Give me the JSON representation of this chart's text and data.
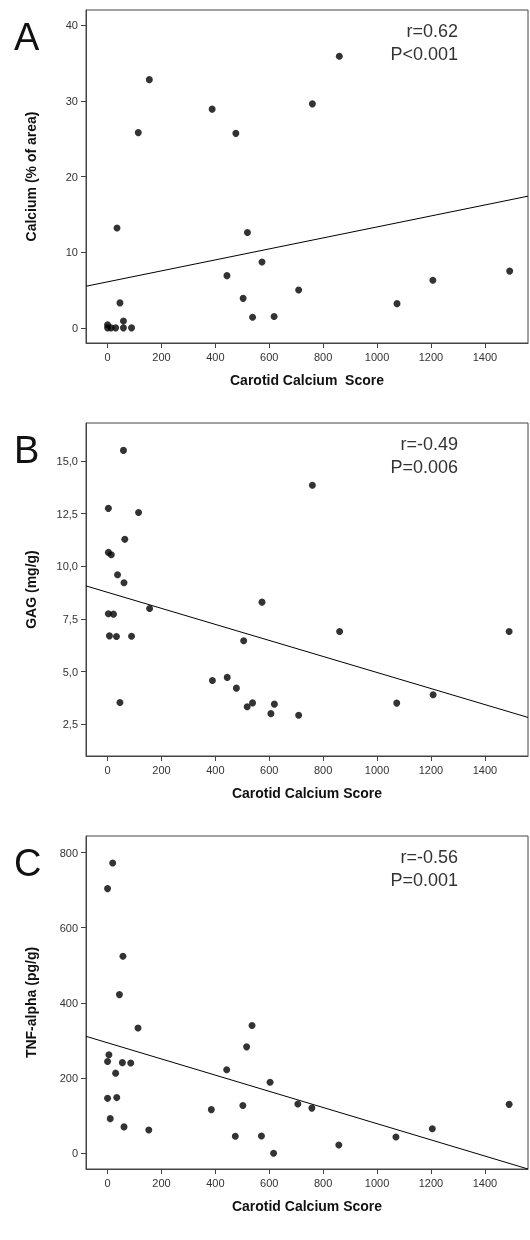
{
  "chart_data": [
    {
      "type": "scatter",
      "title": "A",
      "xlabel": "Carotid Calcium  Score",
      "ylabel": "Calcium (% of area)",
      "annotations": [
        "r=0.62",
        "P<0.001"
      ],
      "xlim": [
        -80,
        1560
      ],
      "ylim": [
        -2,
        42
      ],
      "xticks": [
        0,
        200,
        400,
        600,
        800,
        1000,
        1200,
        1400
      ],
      "yticks": [
        0,
        10,
        20,
        30,
        40
      ],
      "grid": false,
      "series": [
        {
          "marker": "circle",
          "color": "#000000",
          "x": [
            860,
            155,
            760,
            388,
            114,
            476,
            35,
            519,
            573,
            1492,
            443,
            1207,
            709,
            503,
            46,
            1074,
            538,
            618,
            59,
            0,
            0,
            13,
            30,
            59,
            89
          ],
          "values": [
            35.9,
            32.8,
            29.6,
            28.9,
            25.8,
            25.7,
            13.2,
            12.6,
            8.7,
            7.5,
            6.9,
            6.3,
            5.0,
            3.9,
            3.3,
            3.2,
            1.4,
            1.5,
            0.9,
            0.4,
            0,
            0,
            0,
            0,
            0
          ]
        },
        {
          "type": "line",
          "marker": "none",
          "color": "#000000",
          "x": [
            -80,
            1560
          ],
          "values": [
            5.5,
            17.4
          ]
        }
      ]
    },
    {
      "type": "scatter",
      "title": "B",
      "xlabel": "Carotid Calcium Score",
      "ylabel": "GAG (mg/g)",
      "annotations": [
        "r=-0.49",
        "P=0.006"
      ],
      "xlim": [
        -80,
        1560
      ],
      "ylim": [
        1,
        16.8
      ],
      "xticks": [
        0,
        200,
        400,
        600,
        800,
        1000,
        1200,
        1400
      ],
      "yticks": [
        {
          "value": 2.5,
          "label": "2,5"
        },
        {
          "value": 5,
          "label": "5,0"
        },
        {
          "value": 7.5,
          "label": "7,5"
        },
        {
          "value": 10,
          "label": "10,0"
        },
        {
          "value": 12.5,
          "label": "12,5"
        },
        {
          "value": 15,
          "label": "15,0"
        }
      ],
      "grid": false,
      "series": [
        {
          "marker": "circle",
          "color": "#000000",
          "x": [
            59,
            760,
            3,
            115,
            64,
            3,
            14,
            37,
            61,
            573,
            156,
            3,
            22,
            1490,
            861,
            7,
            33,
            89,
            505,
            389,
            444,
            478,
            1208,
            46,
            1073,
            538,
            518,
            619,
            606,
            709
          ],
          "values": [
            15.5,
            13.85,
            12.75,
            12.55,
            11.28,
            10.66,
            10.55,
            9.6,
            9.22,
            8.3,
            8.0,
            7.75,
            7.73,
            6.91,
            6.91,
            6.7,
            6.67,
            6.68,
            6.47,
            4.58,
            4.73,
            4.22,
            3.91,
            3.54,
            3.51,
            3.52,
            3.34,
            3.46,
            3.01,
            2.93
          ]
        },
        {
          "type": "line",
          "marker": "none",
          "color": "#000000",
          "x": [
            -80,
            1560
          ],
          "values": [
            9.07,
            2.83
          ]
        }
      ]
    },
    {
      "type": "scatter",
      "title": "C",
      "xlabel": "Carotid Calcium Score",
      "ylabel": "TNF-alpha (pg/g)",
      "annotations": [
        "r=-0.56",
        "P=0.001"
      ],
      "xlim": [
        -80,
        1560
      ],
      "ylim": [
        -42,
        844
      ],
      "xticks": [
        0,
        200,
        400,
        600,
        800,
        1000,
        1200,
        1400
      ],
      "yticks": [
        0,
        200,
        400,
        600,
        800
      ],
      "grid": false,
      "series": [
        {
          "marker": "circle",
          "color": "#000000",
          "x": [
            19,
            0,
            57,
            44,
            113,
            536,
            516,
            5,
            0,
            55,
            86,
            30,
            442,
            603,
            0,
            34,
            706,
            1490,
            758,
            385,
            502,
            10,
            61,
            1205,
            153,
            474,
            571,
            1070,
            858,
            616
          ],
          "values": [
            772,
            704,
            524,
            422,
            333,
            340,
            283,
            262,
            244,
            241,
            240,
            213,
            222,
            189,
            146,
            148,
            131,
            130,
            120,
            116,
            127,
            92,
            70,
            65,
            62,
            45,
            46,
            43,
            22,
            0
          ]
        },
        {
          "type": "line",
          "marker": "none",
          "color": "#000000",
          "x": [
            -80,
            1560
          ],
          "values": [
            311,
            -42
          ]
        }
      ]
    }
  ]
}
